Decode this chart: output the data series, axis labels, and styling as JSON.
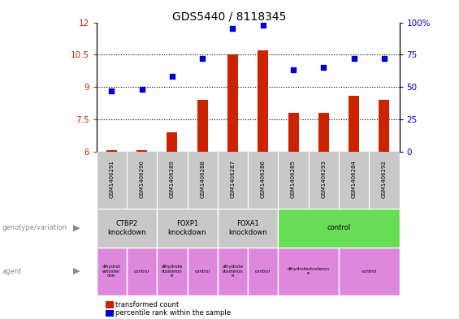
{
  "title": "GDS5440 / 8118345",
  "samples": [
    "GSM1406291",
    "GSM1406290",
    "GSM1406289",
    "GSM1406288",
    "GSM1406287",
    "GSM1406286",
    "GSM1406285",
    "GSM1406293",
    "GSM1406284",
    "GSM1406292"
  ],
  "transformed_count": [
    6.05,
    6.05,
    6.9,
    8.4,
    10.5,
    10.7,
    7.8,
    7.8,
    8.6,
    8.4
  ],
  "percentile_rank": [
    47,
    48,
    58,
    72,
    95,
    98,
    63,
    65,
    72,
    72
  ],
  "ylim_left": [
    6,
    12
  ],
  "ylim_right": [
    0,
    100
  ],
  "yticks_left": [
    6,
    7.5,
    9,
    10.5,
    12
  ],
  "yticks_right": [
    0,
    25,
    50,
    75,
    100
  ],
  "bar_color": "#cc2200",
  "dot_color": "#0000cc",
  "bg_color": "white",
  "sample_bg": "#c8c8c8",
  "genotype_groups": [
    {
      "label": "CTBP2\nknockdown",
      "start": 0,
      "end": 2,
      "color": "#c8c8c8"
    },
    {
      "label": "FOXP1\nknockdown",
      "start": 2,
      "end": 4,
      "color": "#c8c8c8"
    },
    {
      "label": "FOXA1\nknockdown",
      "start": 4,
      "end": 6,
      "color": "#c8c8c8"
    },
    {
      "label": "control",
      "start": 6,
      "end": 10,
      "color": "#66dd55"
    }
  ],
  "agent_groups": [
    {
      "label": "dihydrot\nestoster\none",
      "start": 0,
      "end": 1,
      "color": "#dd88dd"
    },
    {
      "label": "control",
      "start": 1,
      "end": 2,
      "color": "#dd88dd"
    },
    {
      "label": "dihydrote\nstosteron\ne",
      "start": 2,
      "end": 3,
      "color": "#dd88dd"
    },
    {
      "label": "control",
      "start": 3,
      "end": 4,
      "color": "#dd88dd"
    },
    {
      "label": "dihydrote\nstosteron\ne",
      "start": 4,
      "end": 5,
      "color": "#dd88dd"
    },
    {
      "label": "control",
      "start": 5,
      "end": 6,
      "color": "#dd88dd"
    },
    {
      "label": "dihydrotestosteron\ne",
      "start": 6,
      "end": 8,
      "color": "#dd88dd"
    },
    {
      "label": "control",
      "start": 8,
      "end": 10,
      "color": "#dd88dd"
    }
  ],
  "left_label_color": "#cc2200",
  "right_label_color": "#0000cc",
  "legend_items": [
    {
      "label": "transformed count",
      "color": "#cc2200"
    },
    {
      "label": "percentile rank within the sample",
      "color": "#0000cc"
    }
  ]
}
